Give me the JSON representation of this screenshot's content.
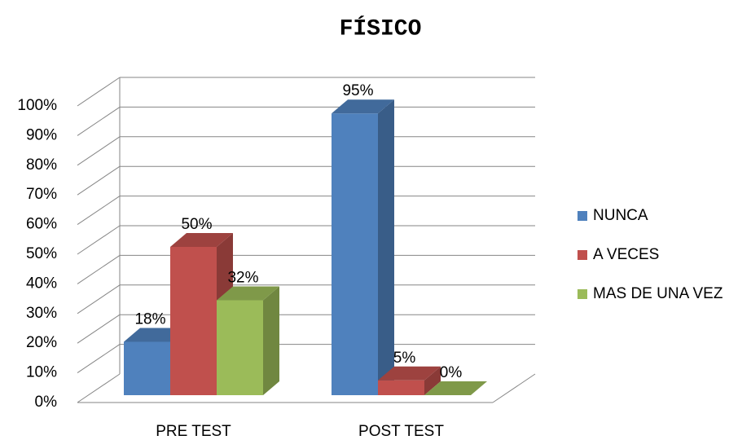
{
  "chart_data": {
    "type": "bar3d",
    "title": "FÍSICO",
    "categories": [
      "PRE TEST",
      "POST TEST"
    ],
    "series": [
      {
        "name": "NUNCA",
        "color": "#4f81bd",
        "values": [
          18,
          95
        ],
        "value_labels": [
          "18%",
          "95%"
        ]
      },
      {
        "name": "A VECES",
        "color": "#c0504d",
        "values": [
          50,
          5
        ],
        "value_labels": [
          "50%",
          "5%"
        ]
      },
      {
        "name": "MAS DE UNA VEZ",
        "color": "#9bbb59",
        "values": [
          32,
          0
        ],
        "value_labels": [
          "32%",
          "0%"
        ]
      }
    ],
    "ylim": [
      0,
      100
    ],
    "yticks": [
      {
        "value": 0,
        "label": "0%"
      },
      {
        "value": 10,
        "label": "10%"
      },
      {
        "value": 20,
        "label": "20%"
      },
      {
        "value": 30,
        "label": "30%"
      },
      {
        "value": 40,
        "label": "40%"
      },
      {
        "value": 50,
        "label": "50%"
      },
      {
        "value": 60,
        "label": "60%"
      },
      {
        "value": 70,
        "label": "70%"
      },
      {
        "value": 80,
        "label": "80%"
      },
      {
        "value": 90,
        "label": "90%"
      },
      {
        "value": 100,
        "label": "100%"
      }
    ],
    "grid": true,
    "legend": "right"
  }
}
